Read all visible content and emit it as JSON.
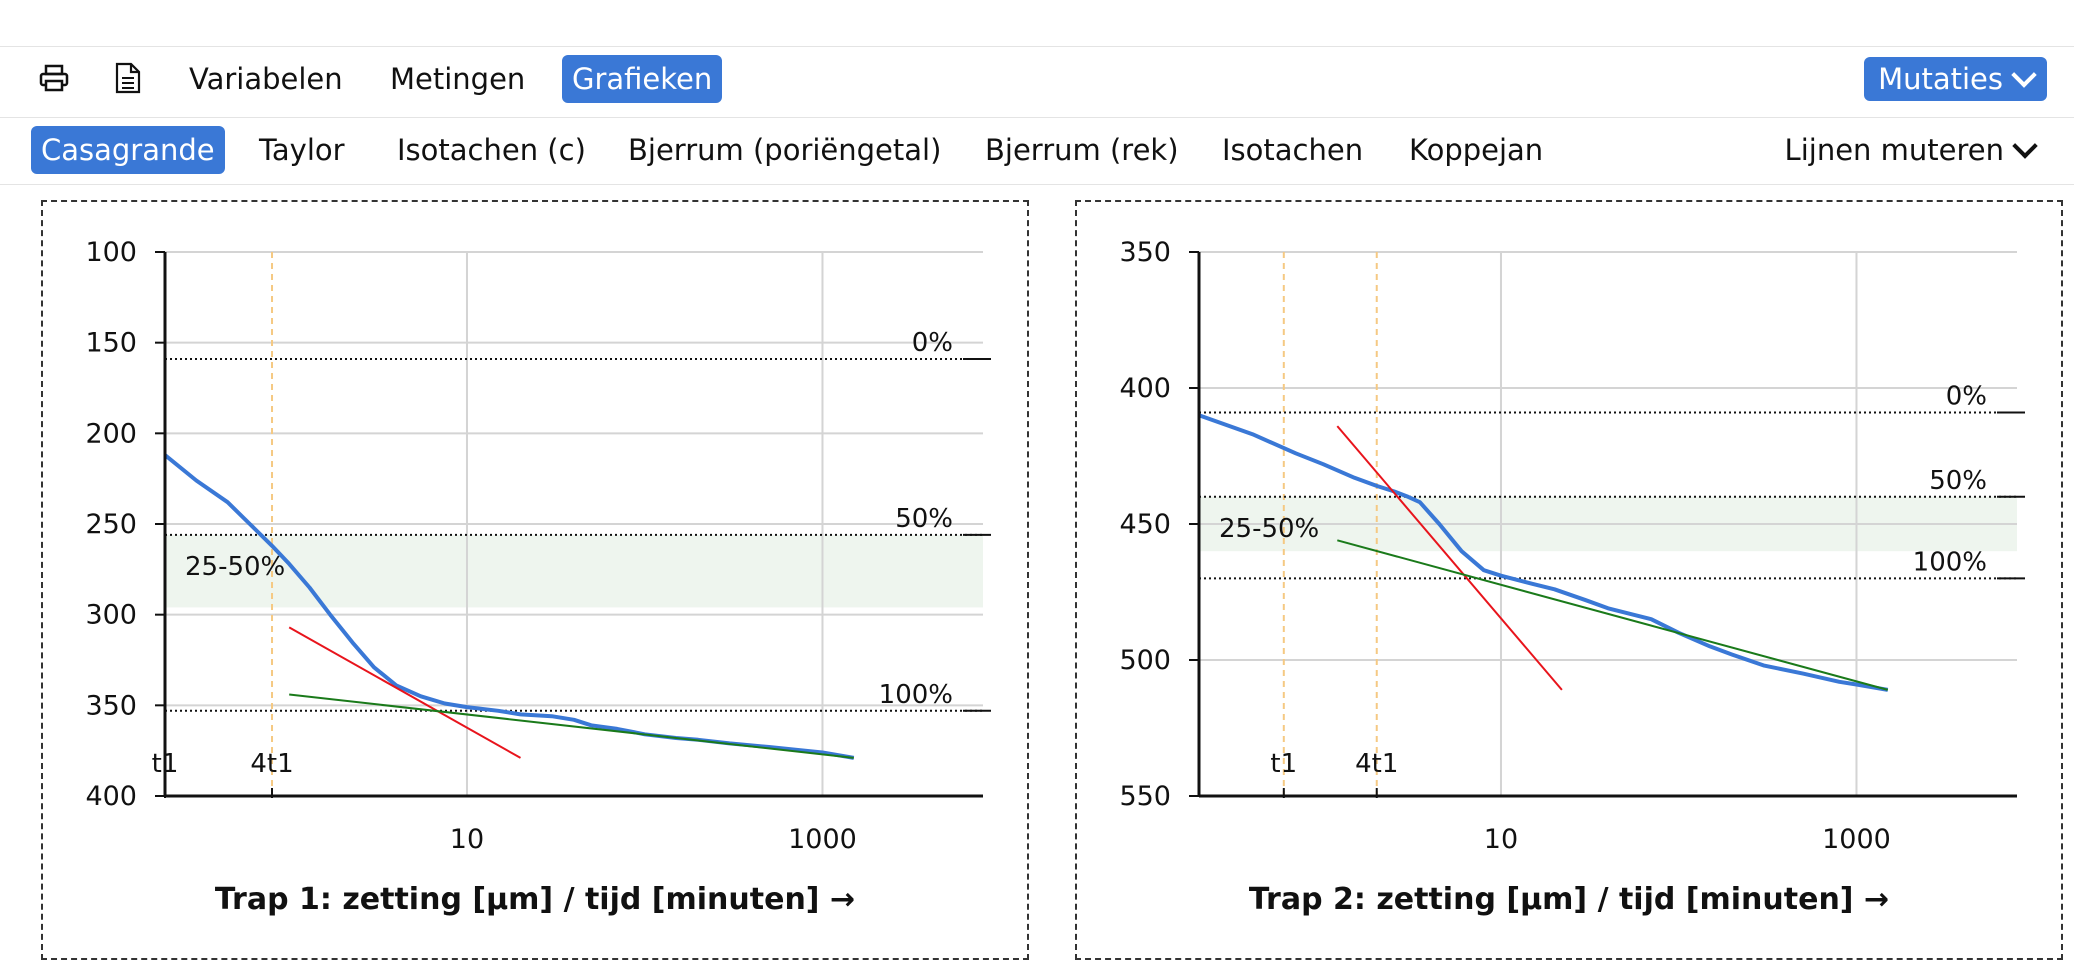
{
  "toolbar": {
    "print_icon": "printer-icon",
    "doc_icon": "document-icon",
    "tabs": [
      "Variabelen",
      "Metingen",
      "Grafieken"
    ],
    "active_tab": "Grafieken",
    "mutations_label": "Mutaties"
  },
  "subnav": {
    "tabs": [
      "Casagrande",
      "Taylor",
      "Isotachen (c)",
      "Bjerrum (poriëngetal)",
      "Bjerrum (rek)",
      "Isotachen",
      "Koppejan"
    ],
    "active_tab": "Casagrande",
    "lines_label": "Lijnen muteren"
  },
  "colors": {
    "accent": "#3a78d6",
    "measure": "#3a78d6",
    "tangent_red": "#e8141c",
    "tangent_green": "#1a7a1a",
    "band": "#eef5ee",
    "marker": "#f5c983"
  },
  "chart_data": [
    {
      "type": "line",
      "title": "Trap 1: zetting [μm] / tijd [minuten] →",
      "x_scale": "log",
      "xlim": [
        0.2,
        8000
      ],
      "x_ticks": [
        10,
        1000
      ],
      "x_tick_labels": [
        "10",
        "1000"
      ],
      "ylim": [
        100,
        400
      ],
      "y_ticks": [
        100,
        150,
        200,
        250,
        300,
        350,
        400
      ],
      "y_tick_labels": [
        "100",
        "150",
        "200",
        "250",
        "300",
        "350",
        "400"
      ],
      "y_inverted": true,
      "grid": true,
      "band": {
        "label": "25-50%",
        "from": 256,
        "to": 296
      },
      "levels": [
        {
          "label": "0%",
          "y": 159
        },
        {
          "label": "50%",
          "y": 256
        },
        {
          "label": "100%",
          "y": 353
        }
      ],
      "markers": [
        {
          "label": "t1",
          "x": 0.2
        },
        {
          "label": "4t1",
          "x": 0.8
        }
      ],
      "series": [
        {
          "kind": "measurements",
          "x": [
            0.2,
            0.3,
            0.45,
            0.6,
            0.8,
            1.0,
            1.3,
            1.7,
            2.3,
            3.0,
            4.0,
            5.5,
            7.5,
            10,
            15,
            20,
            30,
            40,
            50,
            70,
            100,
            150,
            200,
            300,
            500,
            800,
            1000,
            1500
          ],
          "y": [
            212,
            226,
            238,
            250,
            262,
            272,
            285,
            300,
            316,
            329,
            339,
            345,
            349,
            351,
            353,
            355,
            356,
            358,
            361,
            363,
            366,
            368,
            369,
            371,
            373,
            375,
            376,
            379
          ]
        },
        {
          "kind": "tangent-red",
          "x": [
            1.0,
            20
          ],
          "y": [
            307,
            379
          ]
        },
        {
          "kind": "tangent-green",
          "x": [
            1.0,
            1500
          ],
          "y": [
            344,
            379
          ]
        }
      ]
    },
    {
      "type": "line",
      "title": "Trap 2: zetting [μm] / tijd [minuten] →",
      "x_scale": "log",
      "xlim": [
        0.2,
        8000
      ],
      "x_ticks": [
        10,
        1000
      ],
      "x_tick_labels": [
        "10",
        "1000"
      ],
      "ylim": [
        350,
        550
      ],
      "y_ticks": [
        350,
        400,
        450,
        500,
        550
      ],
      "y_tick_labels": [
        "350",
        "400",
        "450",
        "500",
        "550"
      ],
      "y_inverted": true,
      "grid": true,
      "band": {
        "label": "25-50%",
        "from": 440,
        "to": 460
      },
      "levels": [
        {
          "label": "0%",
          "y": 409
        },
        {
          "label": "50%",
          "y": 440
        },
        {
          "label": "100%",
          "y": 470
        }
      ],
      "markers": [
        {
          "label": "t1",
          "x": 0.6
        },
        {
          "label": "4t1",
          "x": 2
        }
      ],
      "series": [
        {
          "kind": "measurements",
          "x": [
            0.2,
            0.4,
            0.7,
            1.0,
            1.5,
            2.0,
            2.5,
            3.0,
            3.5,
            4.5,
            6,
            8,
            10,
            15,
            20,
            30,
            40,
            70,
            100,
            150,
            200,
            300,
            500,
            800,
            1000,
            1500
          ],
          "y": [
            410,
            417,
            424,
            428,
            433,
            436,
            438,
            440,
            442,
            450,
            460,
            467,
            469,
            472,
            474,
            478,
            481,
            485,
            490,
            495,
            498,
            502,
            505,
            508,
            509,
            511
          ]
        },
        {
          "kind": "tangent-red",
          "x": [
            1.2,
            22
          ],
          "y": [
            414,
            511
          ]
        },
        {
          "kind": "tangent-green",
          "x": [
            1.2,
            1500
          ],
          "y": [
            456,
            511
          ]
        }
      ]
    }
  ]
}
